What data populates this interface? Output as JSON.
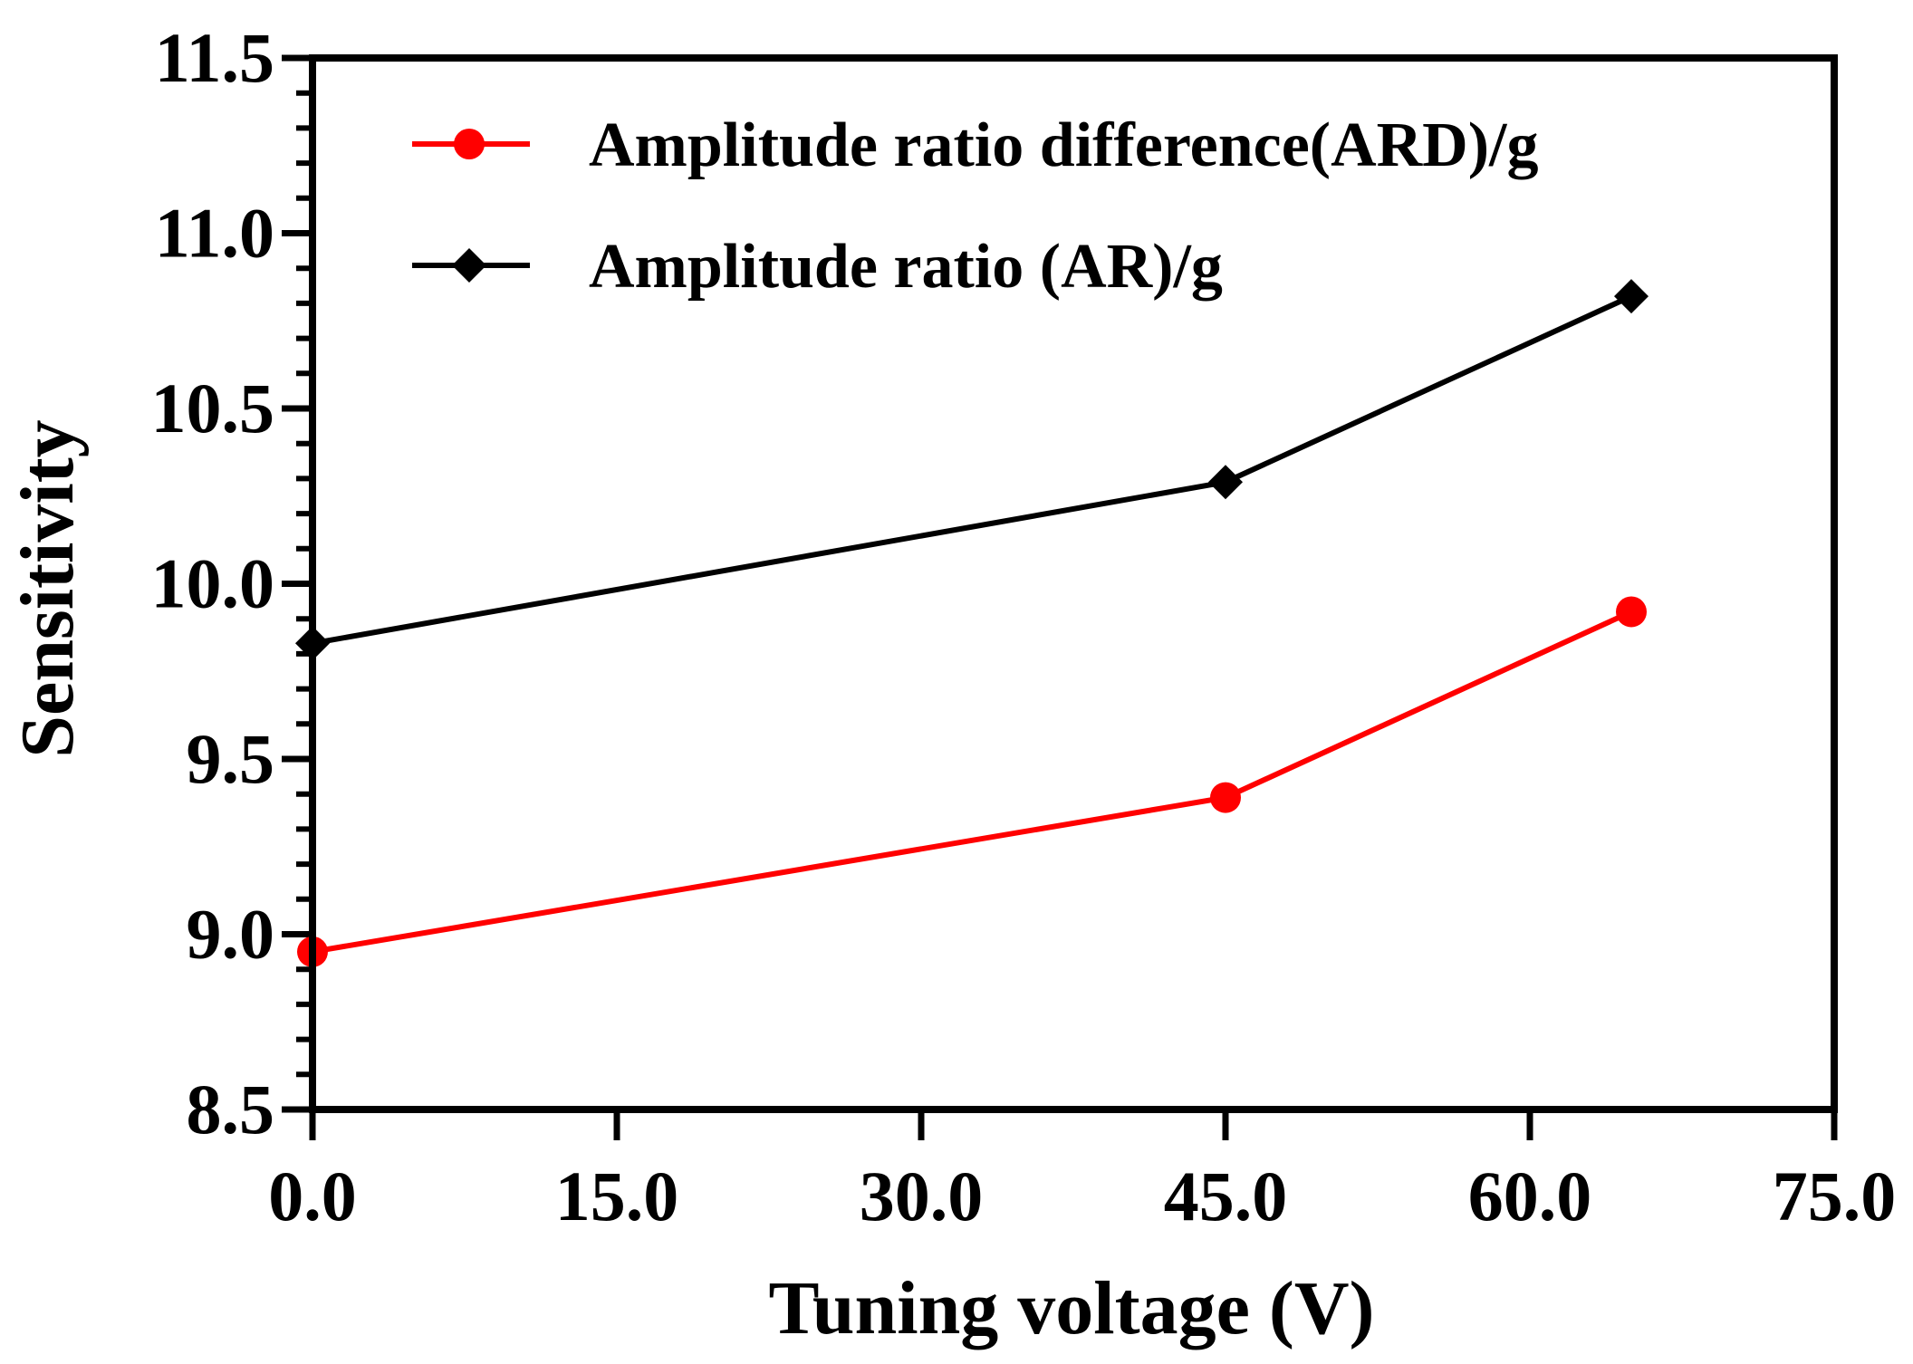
{
  "chart_data": {
    "type": "line",
    "title": "",
    "xlabel": "Tuning voltage (V)",
    "ylabel": "Sensitivity",
    "xlim": [
      0,
      75
    ],
    "ylim": [
      8.5,
      11.5
    ],
    "x_ticks": [
      {
        "value": 0,
        "label": "0.0"
      },
      {
        "value": 15,
        "label": "15.0"
      },
      {
        "value": 30,
        "label": "30.0"
      },
      {
        "value": 45,
        "label": "45.0"
      },
      {
        "value": 60,
        "label": "60.0"
      },
      {
        "value": 75,
        "label": "75.0"
      }
    ],
    "y_ticks": [
      {
        "value": 8.5,
        "label": "8.5"
      },
      {
        "value": 9.0,
        "label": "9.0"
      },
      {
        "value": 9.5,
        "label": "9.5"
      },
      {
        "value": 10.0,
        "label": "10.0"
      },
      {
        "value": 10.5,
        "label": "10.5"
      },
      {
        "value": 11.0,
        "label": "11.0"
      },
      {
        "value": 11.5,
        "label": "11.5"
      }
    ],
    "y_minor_step": 0.1,
    "grid": false,
    "legend_position": "top-left",
    "series": [
      {
        "name": "Amplitude ratio difference(ARD)/g",
        "color": "#ff0000",
        "marker": "circle",
        "x": [
          0,
          45,
          65
        ],
        "y": [
          8.95,
          9.39,
          9.92
        ]
      },
      {
        "name": "Amplitude ratio (AR)/g",
        "color": "#000000",
        "marker": "diamond",
        "x": [
          0,
          45,
          65
        ],
        "y": [
          9.83,
          10.29,
          10.82
        ]
      }
    ]
  }
}
